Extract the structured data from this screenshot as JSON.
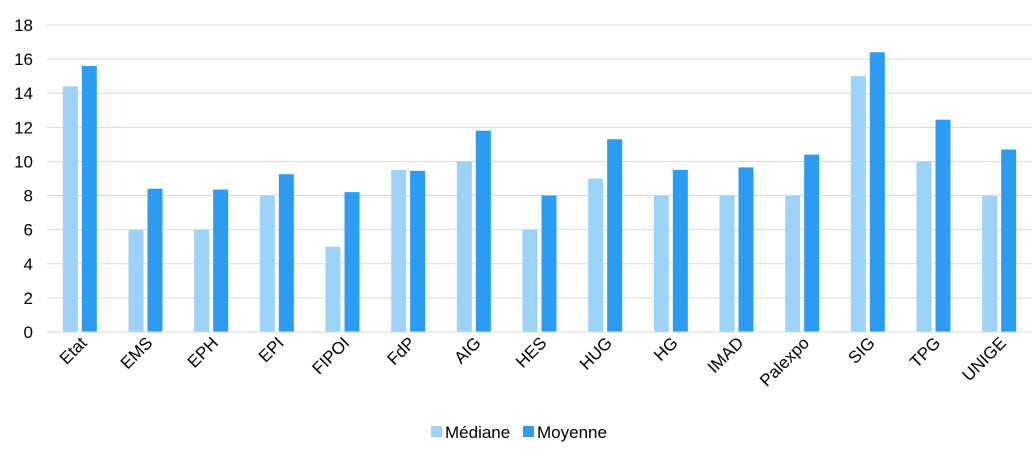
{
  "chart_data": {
    "type": "bar",
    "categories": [
      "Etat",
      "EMS",
      "EPH",
      "EPI",
      "FIPOI",
      "FdP",
      "AIG",
      "HES",
      "HUG",
      "HG",
      "IMAD",
      "Palexpo",
      "SIG",
      "TPG",
      "UNIGE"
    ],
    "series": [
      {
        "name": "Médiane",
        "color": "#9dd3f8",
        "values": [
          14.4,
          6,
          6,
          8,
          5,
          9.5,
          10,
          6,
          9,
          8,
          8,
          8,
          15,
          10,
          8
        ]
      },
      {
        "name": "Moyenne",
        "color": "#2b9cf2",
        "values": [
          15.6,
          8.4,
          8.35,
          9.25,
          8.2,
          9.45,
          11.8,
          8,
          11.3,
          9.5,
          9.65,
          10.4,
          16.4,
          12.45,
          10.7
        ]
      }
    ],
    "y_ticks": [
      0,
      2,
      4,
      6,
      8,
      10,
      12,
      14,
      16,
      18
    ],
    "ylim": [
      0,
      18
    ],
    "grid": true,
    "legend_position": "bottom-center",
    "title": "",
    "xlabel": "",
    "ylabel": ""
  }
}
